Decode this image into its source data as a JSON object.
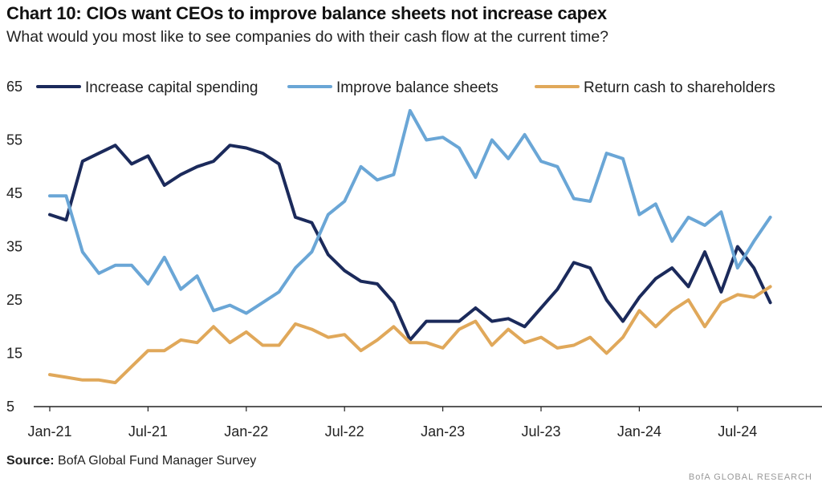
{
  "title": "Chart 10: CIOs want CEOs to improve balance sheets not increase capex",
  "subtitle": "What would you most like to see companies do with their cash flow at the current time?",
  "source_label": "Source:",
  "source_text": "BofA Global Fund Manager Survey",
  "watermark": "BofA GLOBAL RESEARCH",
  "chart_data": {
    "type": "line",
    "ylim": [
      5,
      65
    ],
    "yticks": [
      5,
      15,
      25,
      35,
      45,
      55,
      65
    ],
    "x_tick_labels": [
      "Jan-21",
      "Jul-21",
      "Jan-22",
      "Jul-22",
      "Jan-23",
      "Jul-23",
      "Jan-24",
      "Jul-24"
    ],
    "x_tick_index": [
      0,
      6,
      12,
      18,
      24,
      30,
      36,
      42
    ],
    "x_count_axis": 48,
    "legend": "top-left",
    "grid": false,
    "series": [
      {
        "name": "Increase capital spending",
        "color": "#1b2a5b",
        "values": [
          41,
          40,
          51,
          52.5,
          54,
          50.5,
          52,
          46.5,
          48.5,
          50,
          51,
          54,
          53.5,
          52.5,
          50.5,
          40.5,
          39.5,
          33.5,
          30.5,
          28.5,
          28,
          24.5,
          17.5,
          21,
          21,
          21,
          23.5,
          21,
          21.5,
          20,
          23.5,
          27,
          32,
          31,
          25,
          21,
          25.5,
          29,
          31,
          27.5,
          34,
          26.5,
          35,
          31,
          24.5
        ]
      },
      {
        "name": "Improve balance sheets",
        "color": "#6aa6d6",
        "values": [
          44.5,
          44.5,
          34,
          30,
          31.5,
          31.5,
          28,
          33,
          27,
          29.5,
          23,
          24,
          22.5,
          24.5,
          26.5,
          31,
          34,
          41,
          43.5,
          50,
          47.5,
          48.5,
          60.5,
          55,
          55.5,
          53.5,
          48,
          55,
          51.5,
          56,
          51,
          50,
          44,
          43.5,
          52.5,
          51.5,
          41,
          43,
          36,
          40.5,
          39,
          41.5,
          31,
          36,
          40.5
        ]
      },
      {
        "name": "Return cash to shareholders",
        "color": "#e0a85a",
        "values": [
          11,
          10.5,
          10,
          10,
          9.5,
          12.5,
          15.5,
          15.5,
          17.5,
          17,
          20,
          17,
          19,
          16.5,
          16.5,
          20.5,
          19.5,
          18,
          18.5,
          15.5,
          17.5,
          20,
          17,
          17,
          16,
          19.5,
          21,
          16.5,
          19.5,
          17,
          18,
          16,
          16.5,
          18,
          15,
          18,
          23,
          20,
          23,
          25,
          20,
          24.5,
          26,
          25.5,
          27.5
        ]
      }
    ]
  }
}
